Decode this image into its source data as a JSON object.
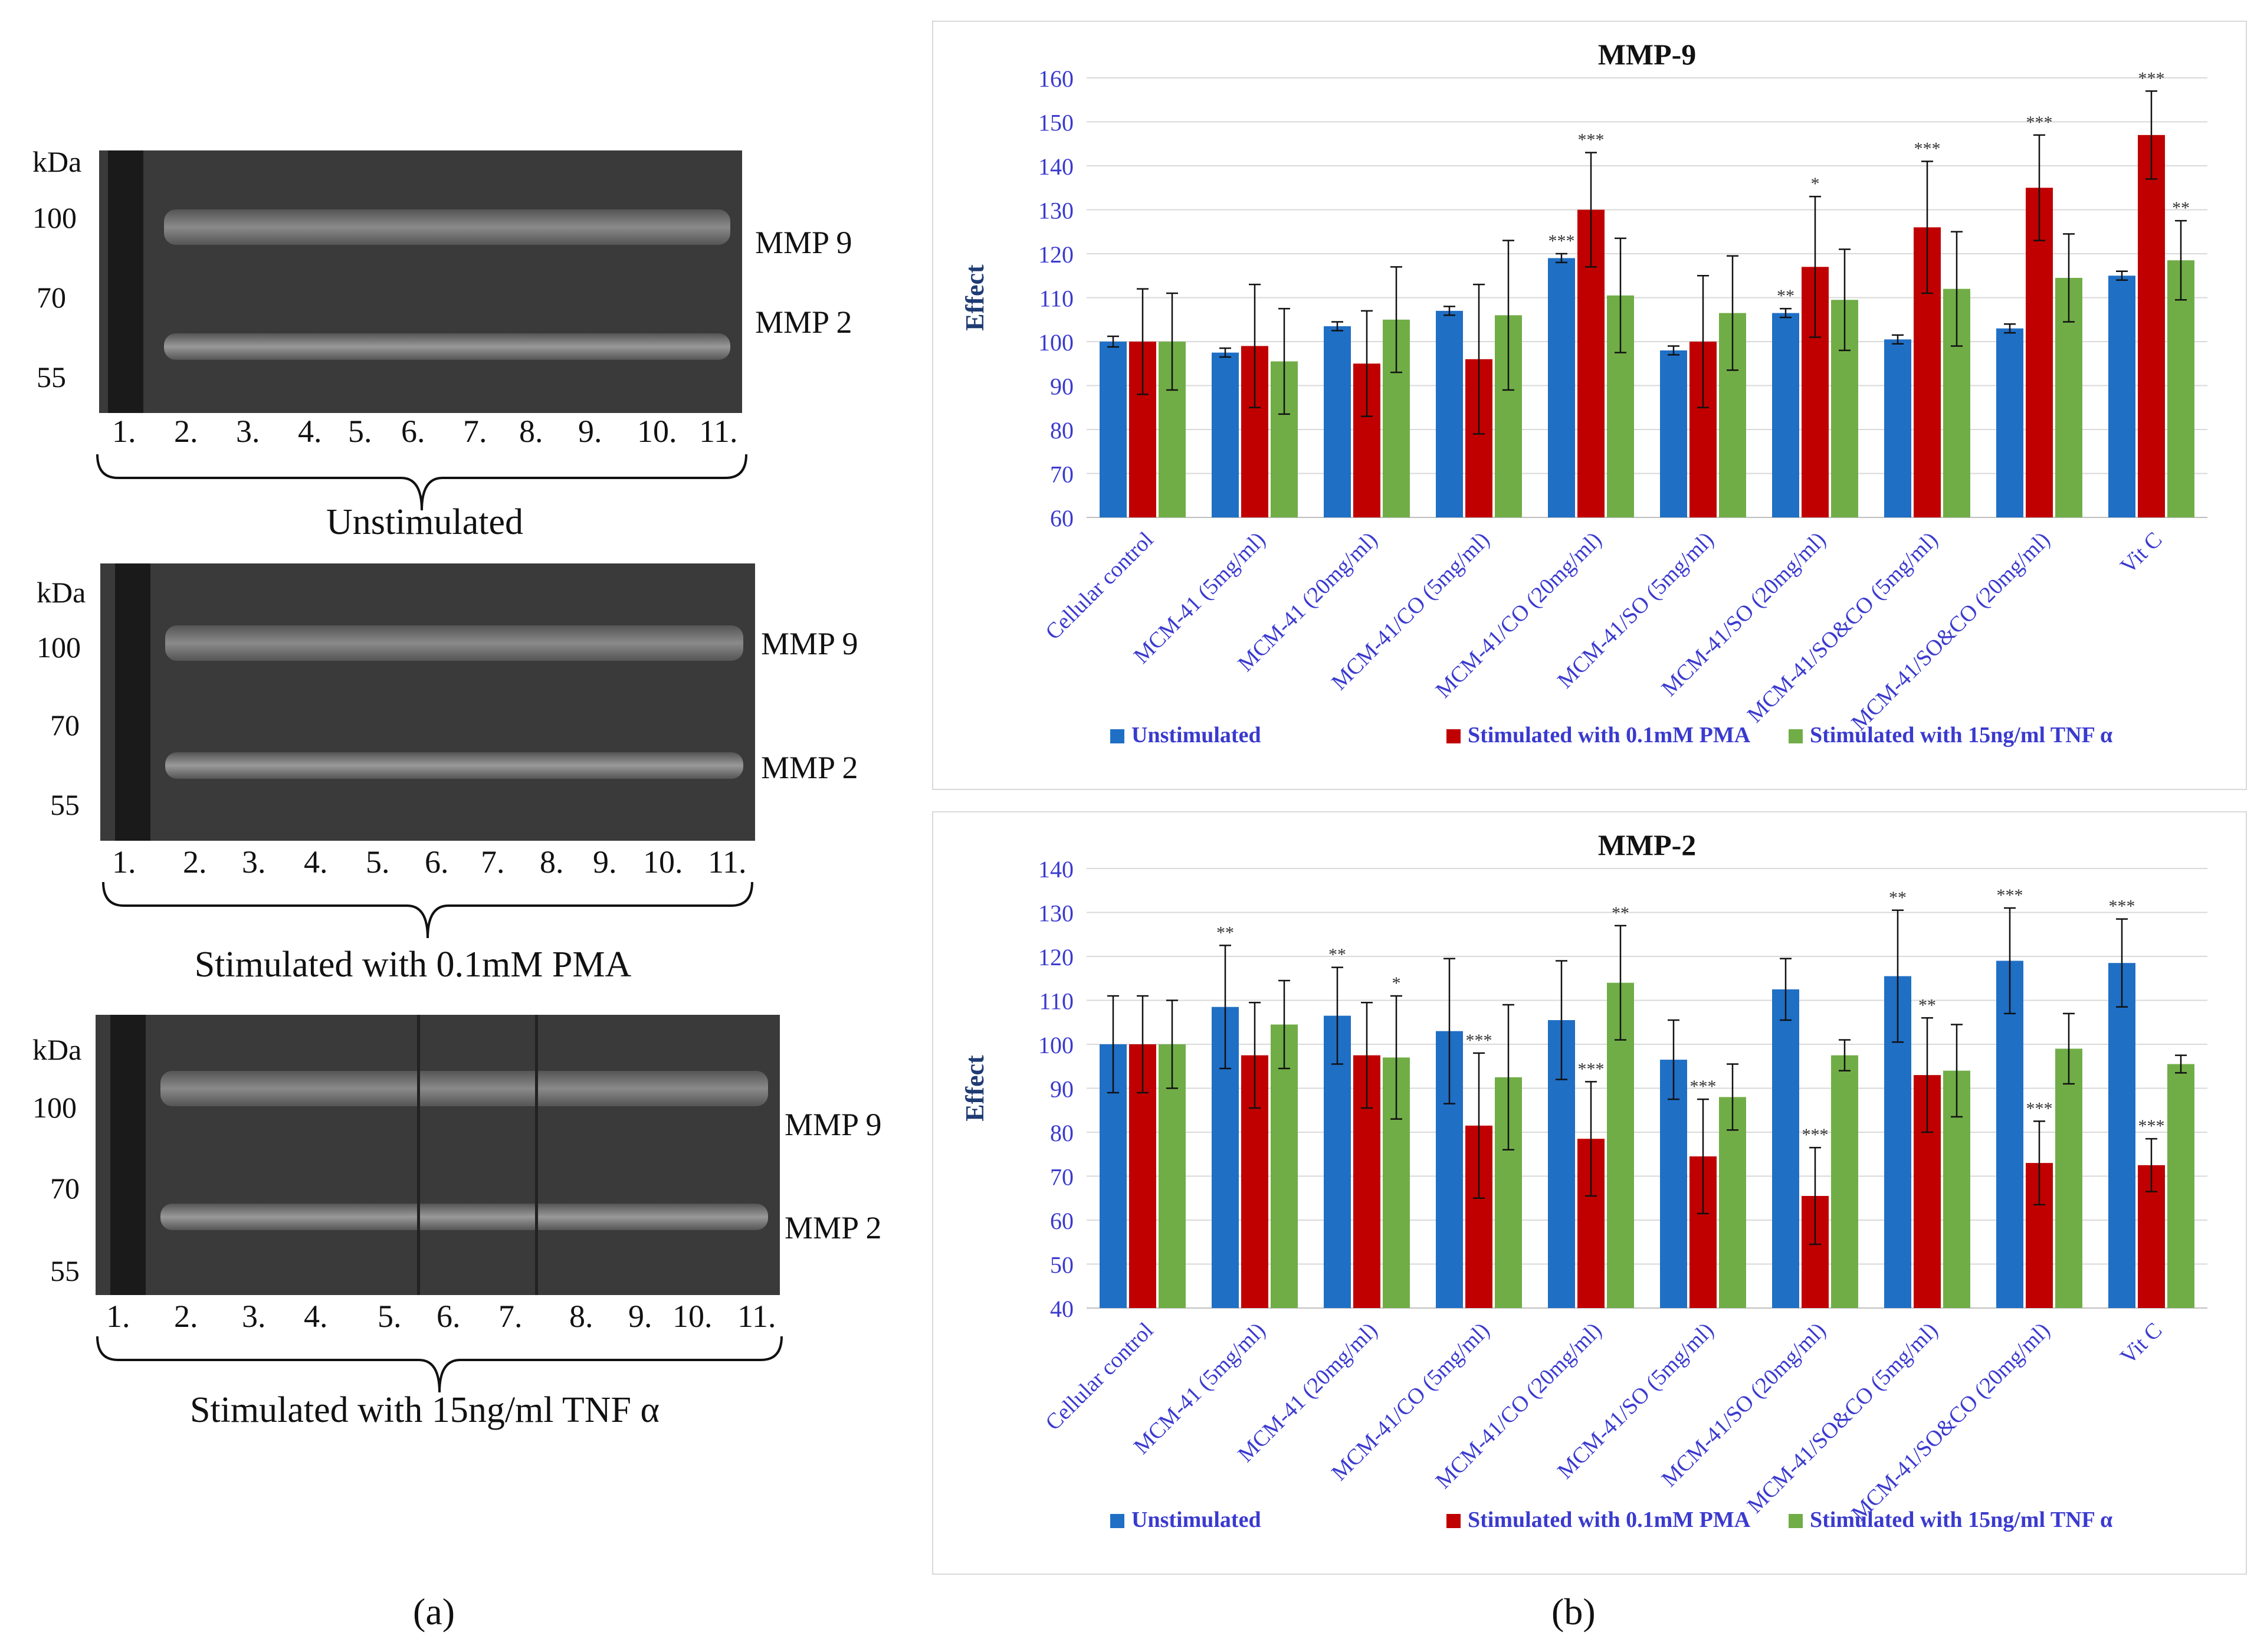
{
  "panel_a": {
    "letter": "(a)",
    "gels": [
      {
        "kda_title": "kDa",
        "markers": [
          "100",
          "70",
          "55"
        ],
        "bands": [
          "MMP 9",
          "MMP 2"
        ],
        "lanes": [
          "1.",
          "2.",
          "3.",
          "4.",
          "5.",
          "6.",
          "7.",
          "8.",
          "9.",
          "10.",
          "11."
        ],
        "caption": "Unstimulated"
      },
      {
        "kda_title": "kDa",
        "markers": [
          "100",
          "70",
          "55"
        ],
        "bands": [
          "MMP 9",
          "MMP 2"
        ],
        "lanes": [
          "1.",
          "2.",
          "3.",
          "4.",
          "5.",
          "6.",
          "7.",
          "8.",
          "9.",
          "10.",
          "11."
        ],
        "caption": "Stimulated with 0.1mM PMA"
      },
      {
        "kda_title": "kDa",
        "markers": [
          "100",
          "70",
          "55"
        ],
        "bands": [
          "MMP 9",
          "MMP 2"
        ],
        "lanes": [
          "1.",
          "2.",
          "3.",
          "4.",
          "5.",
          "6.",
          "7.",
          "8.",
          "9.",
          "10.",
          "11."
        ],
        "caption": "Stimulated with 15ng/ml TNF α"
      }
    ]
  },
  "panel_b": {
    "letter": "(b)"
  },
  "colors": {
    "unstimulated": "#1f6fc5",
    "pma": "#c00000",
    "tnf": "#70ad47",
    "axis_text": "#3a3acf"
  },
  "chart_data": [
    {
      "type": "bar",
      "title": "MMP-9",
      "ylabel": "Effect",
      "ylim": [
        60,
        160
      ],
      "yticks": [
        60,
        70,
        80,
        90,
        100,
        110,
        120,
        130,
        140,
        150,
        160
      ],
      "categories": [
        "Cellular control",
        "MCM-41 (5mg/ml)",
        "MCM-41 (20mg/ml)",
        "MCM-41/CO (5mg/ml)",
        "MCM-41/CO (20mg/ml)",
        "MCM-41/SO (5mg/ml)",
        "MCM-41/SO (20mg/ml)",
        "MCM-41/SO&CO (5mg/ml)",
        "MCM-41/SO&CO (20mg/ml)",
        "Vit C"
      ],
      "series": [
        {
          "name": "Unstimulated",
          "values": [
            100,
            97.5,
            103.5,
            107,
            119,
            98,
            106.5,
            100.5,
            103,
            115
          ],
          "errors": [
            1.2,
            1,
            1,
            1,
            1,
            1,
            1,
            1,
            1,
            1
          ],
          "sig": [
            "",
            "",
            "",
            "",
            "***",
            "",
            "**",
            "",
            "",
            ""
          ]
        },
        {
          "name": "Stimulated with 0.1mM PMA",
          "values": [
            100,
            99,
            95,
            96,
            130,
            100,
            117,
            126,
            135,
            147
          ],
          "errors": [
            12,
            14,
            12,
            17,
            13,
            15,
            16,
            15,
            12,
            10
          ],
          "sig": [
            "",
            "",
            "",
            "",
            "***",
            "",
            "*",
            "***",
            "***",
            "***"
          ]
        },
        {
          "name": "Stimulated with 15ng/ml TNF α",
          "values": [
            100,
            95.5,
            105,
            106,
            110.5,
            106.5,
            109.5,
            112,
            114.5,
            118.5
          ],
          "errors": [
            11,
            12,
            12,
            17,
            13,
            13,
            11.5,
            13,
            10,
            9
          ],
          "sig": [
            "",
            "",
            "",
            "",
            "",
            "",
            "",
            "",
            "",
            "**"
          ]
        }
      ],
      "legend_position": "bottom"
    },
    {
      "type": "bar",
      "title": "MMP-2",
      "ylabel": "Effect",
      "ylim": [
        40,
        140
      ],
      "yticks": [
        40,
        50,
        60,
        70,
        80,
        90,
        100,
        110,
        120,
        130,
        140
      ],
      "categories": [
        "Cellular control",
        "MCM-41 (5mg/ml)",
        "MCM-41 (20mg/ml)",
        "MCM-41/CO (5mg/ml)",
        "MCM-41/CO (20mg/ml)",
        "MCM-41/SO (5mg/ml)",
        "MCM-41/SO (20mg/ml)",
        "MCM-41/SO&CO (5mg/ml)",
        "MCM-41/SO&CO (20mg/ml)",
        "Vit C"
      ],
      "series": [
        {
          "name": "Unstimulated",
          "values": [
            100,
            108.5,
            106.5,
            103,
            105.5,
            96.5,
            112.5,
            115.5,
            119,
            118.5
          ],
          "errors": [
            11,
            14,
            11,
            16.5,
            13.5,
            9,
            7,
            15,
            12,
            10
          ],
          "sig": [
            "",
            "**",
            "**",
            "",
            "",
            "",
            "",
            "**",
            "***",
            "***"
          ]
        },
        {
          "name": "Stimulated with 0.1mM PMA",
          "values": [
            100,
            97.5,
            97.5,
            81.5,
            78.5,
            74.5,
            65.5,
            93,
            73,
            72.5
          ],
          "errors": [
            11,
            12,
            12,
            16.5,
            13,
            13,
            11,
            13,
            9.5,
            6
          ],
          "sig": [
            "",
            "",
            "",
            "***",
            "***",
            "***",
            "***",
            "**",
            "***",
            "***"
          ]
        },
        {
          "name": "Stimulated with 15ng/ml TNF α",
          "values": [
            100,
            104.5,
            97,
            92.5,
            114,
            88,
            97.5,
            94,
            99,
            95.5
          ],
          "errors": [
            10,
            10,
            14,
            16.5,
            13,
            7.5,
            3.5,
            10.5,
            8,
            2
          ],
          "sig": [
            "",
            "",
            "*",
            "",
            "**",
            "",
            "",
            "",
            "",
            ""
          ]
        }
      ],
      "legend_position": "bottom"
    }
  ]
}
